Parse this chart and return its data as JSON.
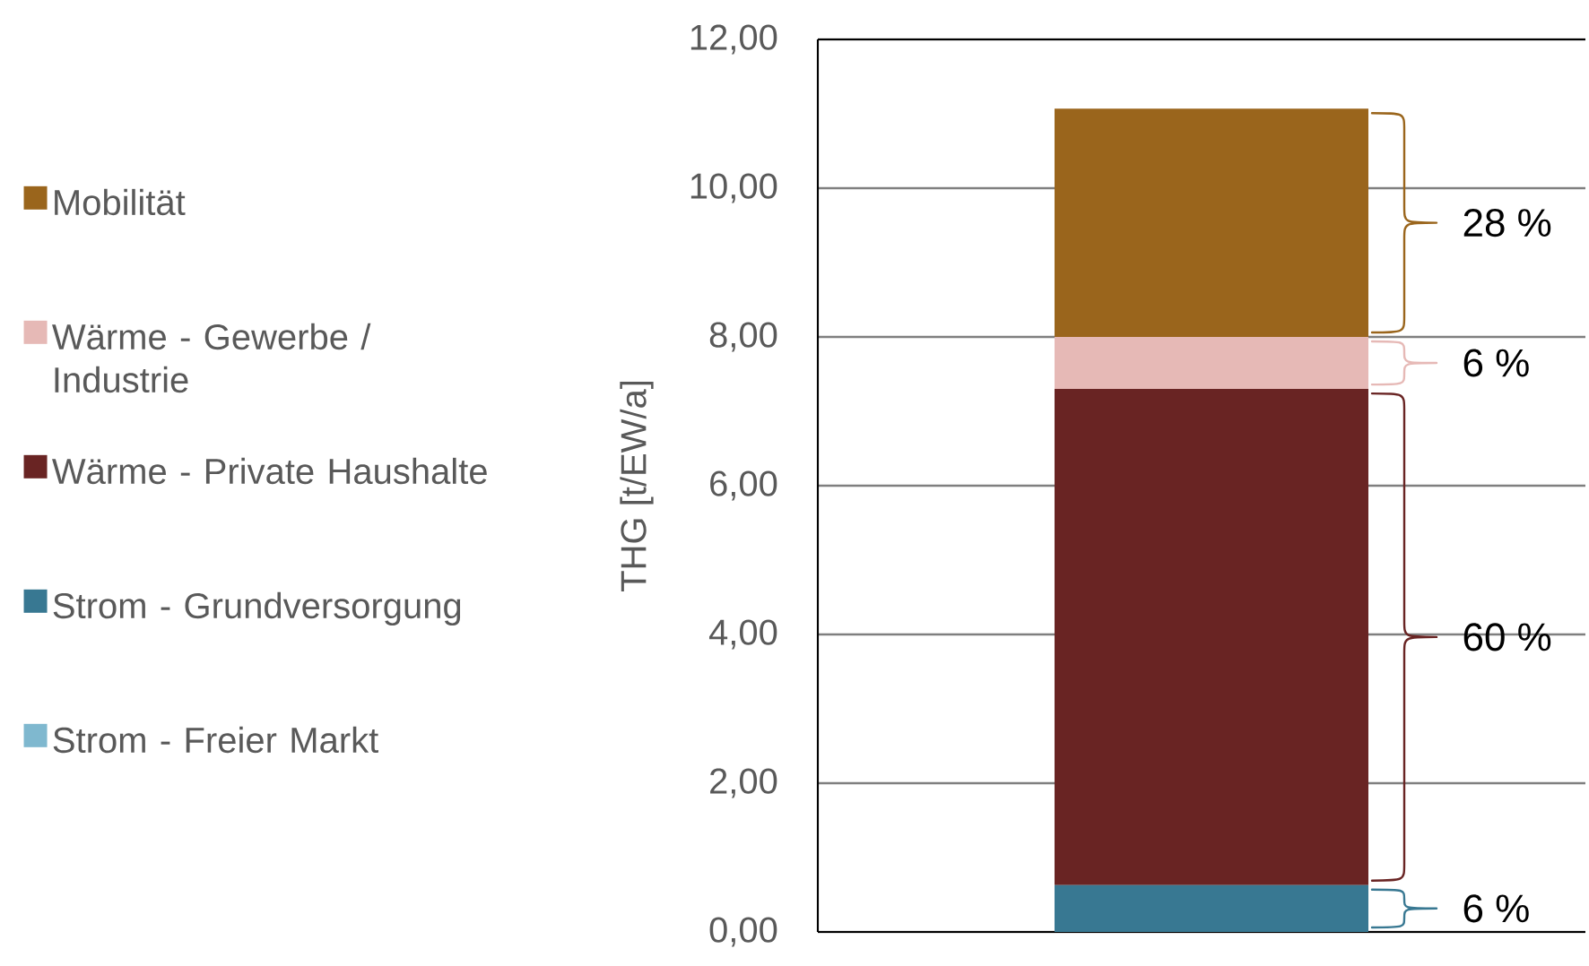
{
  "chart_data": {
    "type": "bar",
    "stacked": true,
    "categories": [
      null
    ],
    "ylabel": "THG [t/EW/a]",
    "ylim": [
      0,
      12
    ],
    "yticks": [
      {
        "value": 0,
        "label": "0,00"
      },
      {
        "value": 2,
        "label": "2,00"
      },
      {
        "value": 4,
        "label": "4,00"
      },
      {
        "value": 6,
        "label": "6,00"
      },
      {
        "value": 8,
        "label": "8,00"
      },
      {
        "value": 10,
        "label": "10,00"
      },
      {
        "value": 12,
        "label": "12,00"
      }
    ],
    "grid": "y",
    "legend": "left",
    "series": [
      {
        "name": "Strom - Freier Markt",
        "color": "#7fb8cf",
        "values": [
          null
        ]
      },
      {
        "name": "Strom - Grundversorgung",
        "color": "#387892",
        "values": [
          0.63
        ]
      },
      {
        "name": "Wärme - Private Haushalte",
        "color": "#692423",
        "values": [
          6.67
        ]
      },
      {
        "name": "Wärme - Gewerbe / Industrie",
        "color": "#e6b9b6",
        "values": [
          0.7
        ]
      },
      {
        "name": "Mobilität",
        "color": "#9a651c",
        "values": [
          3.07
        ]
      }
    ],
    "annotations": [
      "28 %",
      "6 %",
      "60 %",
      "6 %"
    ]
  }
}
